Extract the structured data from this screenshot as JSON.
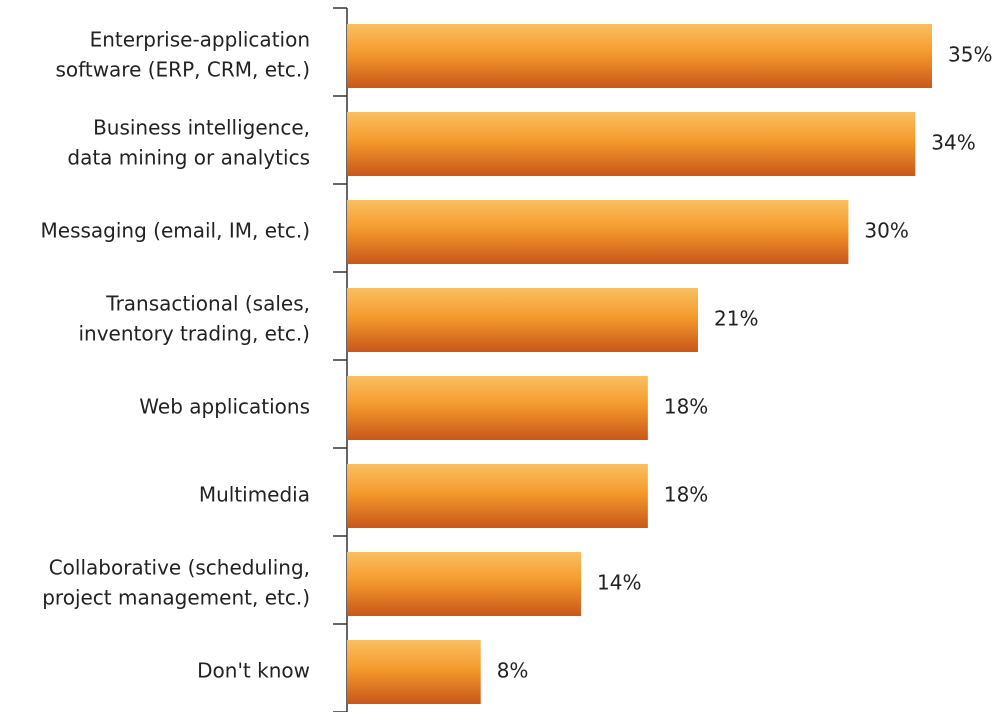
{
  "chart_data": {
    "type": "bar",
    "categories": [
      [
        "Enterprise-application",
        "software (ERP, CRM, etc.)"
      ],
      [
        "Business intelligence,",
        "data mining or analytics"
      ],
      [
        "Messaging (email, IM, etc.)"
      ],
      [
        "Transactional (sales,",
        "inventory trading, etc.)"
      ],
      [
        "Web applications"
      ],
      [
        "Multimedia"
      ],
      [
        "Collaborative (scheduling,",
        "project management, etc.)"
      ],
      [
        "Don't know"
      ]
    ],
    "values": [
      35,
      34,
      30,
      21,
      18,
      18,
      14,
      8
    ],
    "value_labels": [
      "35%",
      "34%",
      "30%",
      "21%",
      "18%",
      "18%",
      "14%",
      "8%"
    ],
    "xlim": [
      0,
      35
    ]
  }
}
